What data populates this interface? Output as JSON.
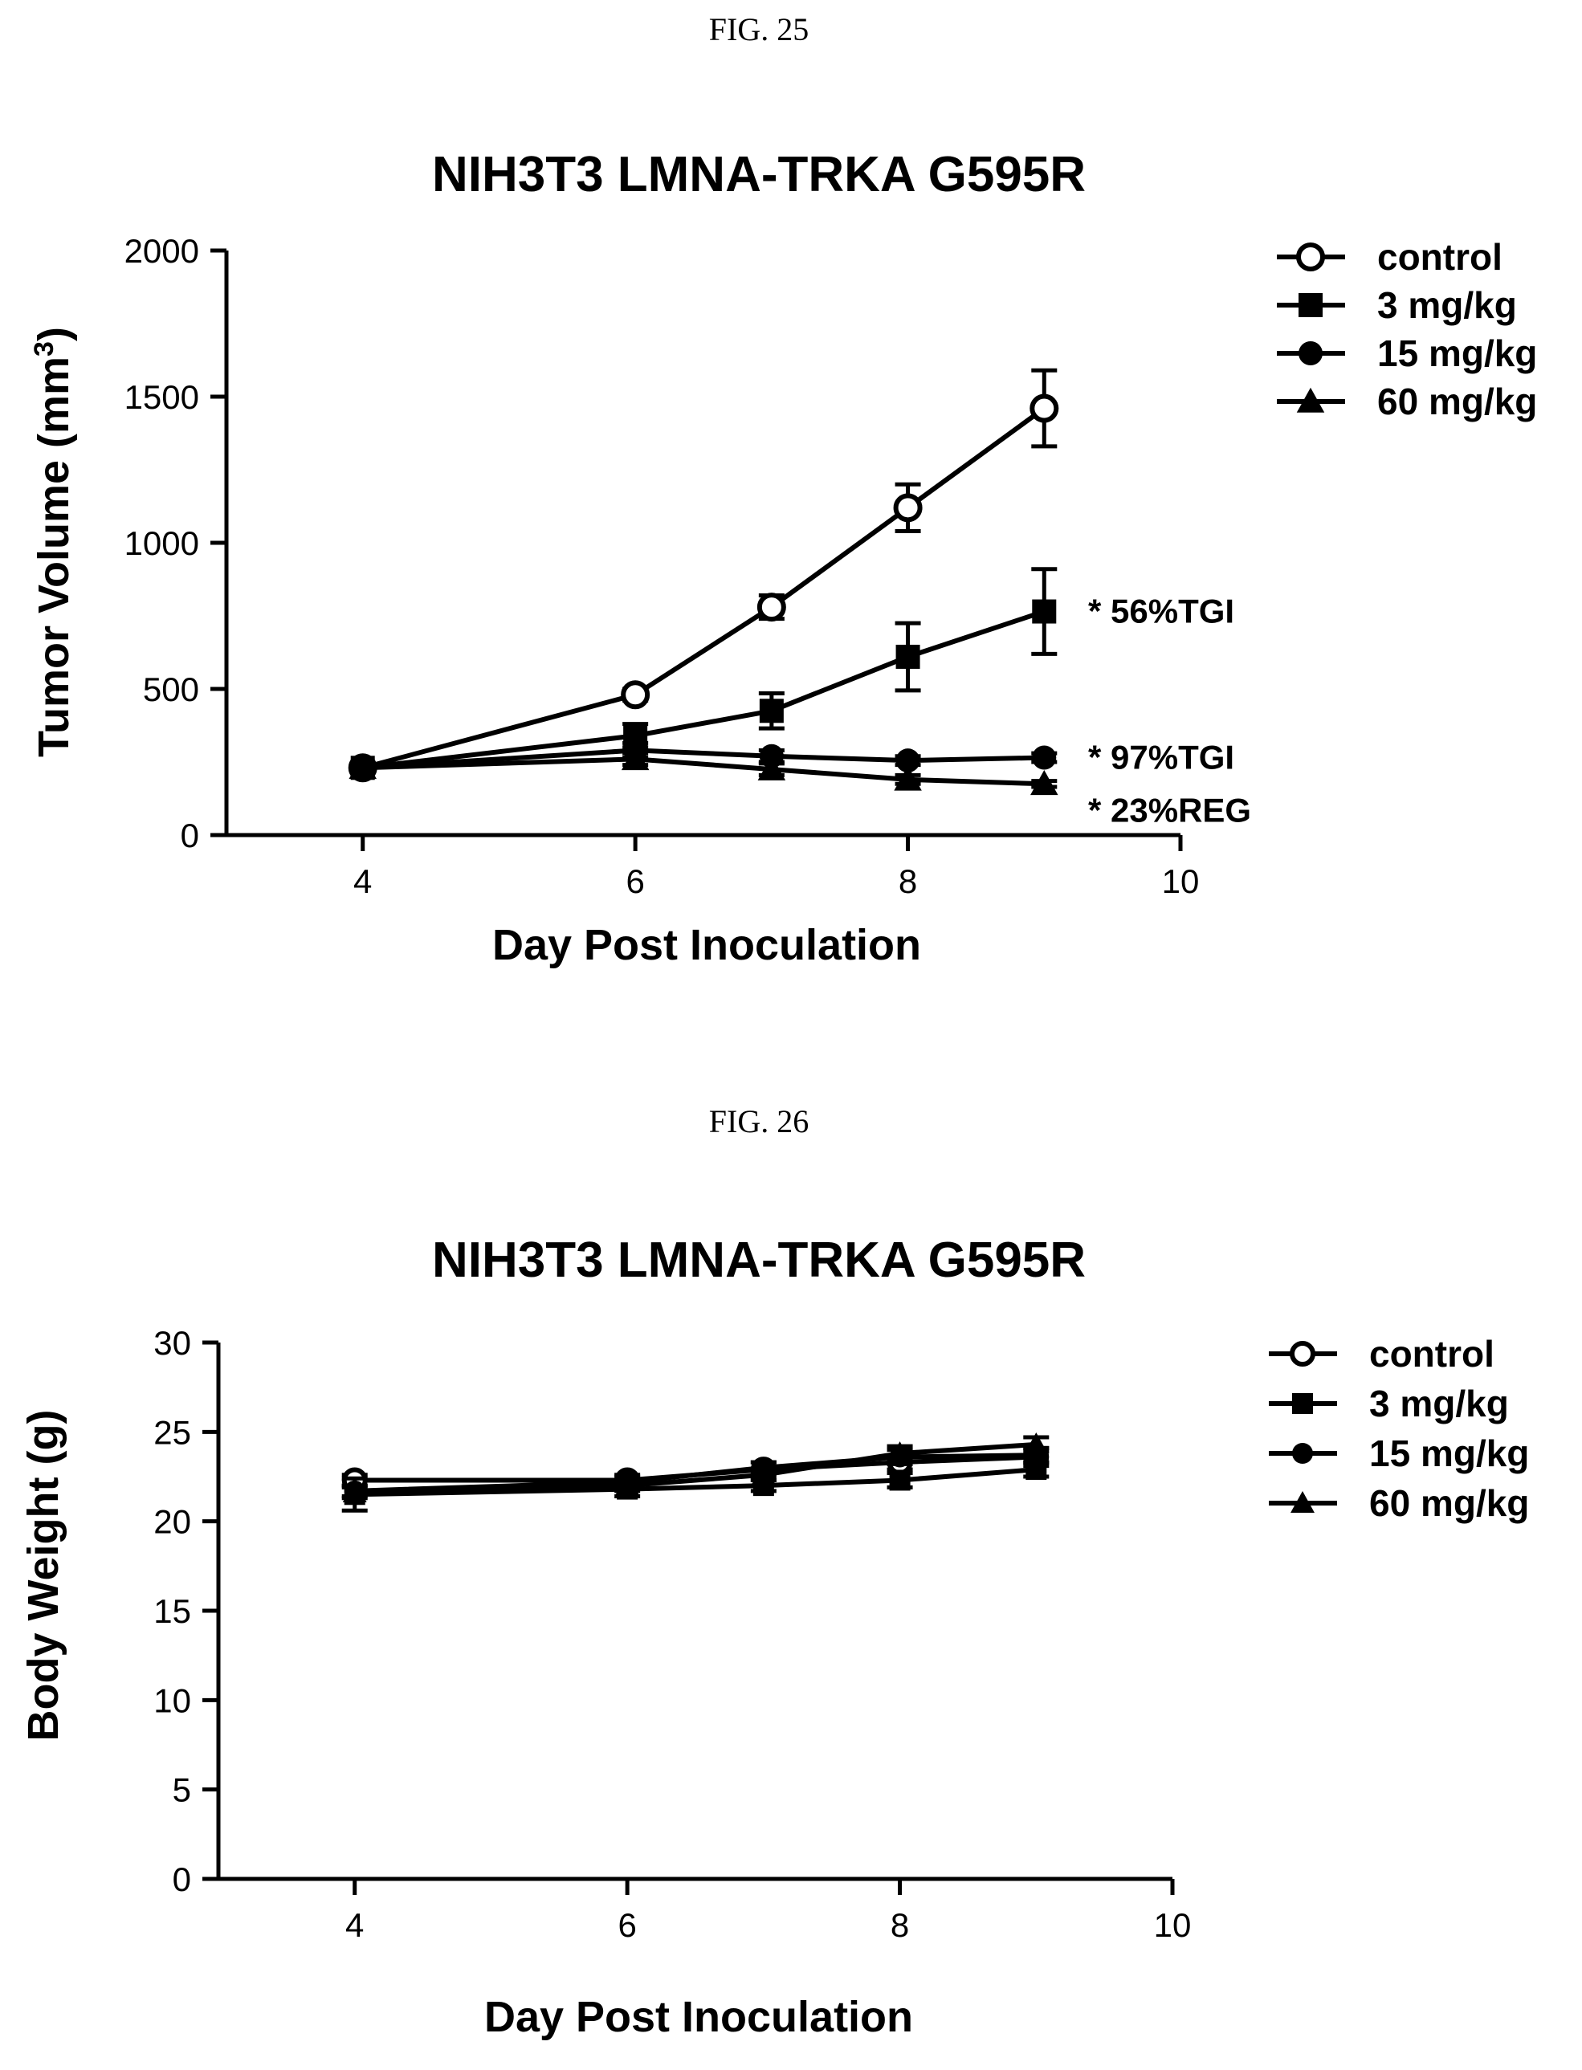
{
  "chart_data": [
    {
      "type": "line",
      "figure_label": "FIG. 25",
      "title": "NIH3T3 LMNA-TRKA G595R",
      "xlabel": "Day Post Inoculation",
      "ylabel": "Tumor Volume (mm",
      "ylabel_sup": "3",
      "ylabel_close": ")",
      "xlim": [
        3,
        10
      ],
      "ylim": [
        0,
        2000
      ],
      "xticks": [
        4,
        6,
        8,
        10
      ],
      "yticks": [
        0,
        500,
        1000,
        1500,
        2000
      ],
      "legend": "top-right",
      "series": [
        {
          "name": "control",
          "marker": "open-circle",
          "x": [
            4,
            6,
            7,
            8,
            9
          ],
          "y": [
            230,
            480,
            780,
            1120,
            1460
          ],
          "err": [
            15,
            20,
            40,
            80,
            130
          ]
        },
        {
          "name": "3 mg/kg",
          "marker": "square",
          "x": [
            4,
            6,
            7,
            8,
            9
          ],
          "y": [
            230,
            340,
            425,
            610,
            765
          ],
          "err": [
            12,
            40,
            60,
            115,
            145
          ]
        },
        {
          "name": "15 mg/kg",
          "marker": "circle",
          "x": [
            4,
            6,
            7,
            8,
            9
          ],
          "y": [
            230,
            290,
            270,
            255,
            265
          ],
          "err": [
            10,
            25,
            20,
            15,
            15
          ]
        },
        {
          "name": "60 mg/kg",
          "marker": "triangle",
          "x": [
            4,
            6,
            7,
            8,
            9
          ],
          "y": [
            230,
            260,
            225,
            190,
            175
          ],
          "err": [
            10,
            20,
            20,
            15,
            10
          ]
        }
      ],
      "annotations": [
        {
          "text": "* 56%TGI",
          "series": "3 mg/kg"
        },
        {
          "text": "* 97%TGI",
          "series": "15 mg/kg"
        },
        {
          "text": "* 23%REG",
          "series": "60 mg/kg"
        }
      ]
    },
    {
      "type": "line",
      "figure_label": "FIG. 26",
      "title": "NIH3T3 LMNA-TRKA G595R",
      "xlabel": "Day Post Inoculation",
      "ylabel": "Body Weight (g)",
      "xlim": [
        3,
        10
      ],
      "ylim": [
        0,
        30
      ],
      "xticks": [
        4,
        6,
        8,
        10
      ],
      "yticks": [
        0,
        5,
        10,
        15,
        20,
        25,
        30
      ],
      "legend": "top-right",
      "series": [
        {
          "name": "control",
          "marker": "open-circle",
          "x": [
            4,
            6,
            7,
            8,
            9
          ],
          "y": [
            22.3,
            22.3,
            22.9,
            23.3,
            23.6
          ],
          "err": [
            0.3,
            0.3,
            0.4,
            0.4,
            0.5
          ]
        },
        {
          "name": "3 mg/kg",
          "marker": "square",
          "x": [
            4,
            6,
            7,
            8,
            9
          ],
          "y": [
            21.5,
            21.8,
            22.0,
            22.3,
            22.9
          ],
          "err": [
            0.9,
            0.4,
            0.3,
            0.4,
            0.4
          ]
        },
        {
          "name": "15 mg/kg",
          "marker": "circle",
          "x": [
            4,
            6,
            7,
            8,
            9
          ],
          "y": [
            21.7,
            22.2,
            23.0,
            23.6,
            23.7
          ],
          "err": [
            0.3,
            0.3,
            0.3,
            0.4,
            0.4
          ]
        },
        {
          "name": "60 mg/kg",
          "marker": "triangle",
          "x": [
            4,
            6,
            7,
            8,
            9
          ],
          "y": [
            21.6,
            22.0,
            22.6,
            23.8,
            24.3
          ],
          "err": [
            0.3,
            0.3,
            0.3,
            0.4,
            0.4
          ]
        }
      ],
      "annotations": []
    }
  ]
}
